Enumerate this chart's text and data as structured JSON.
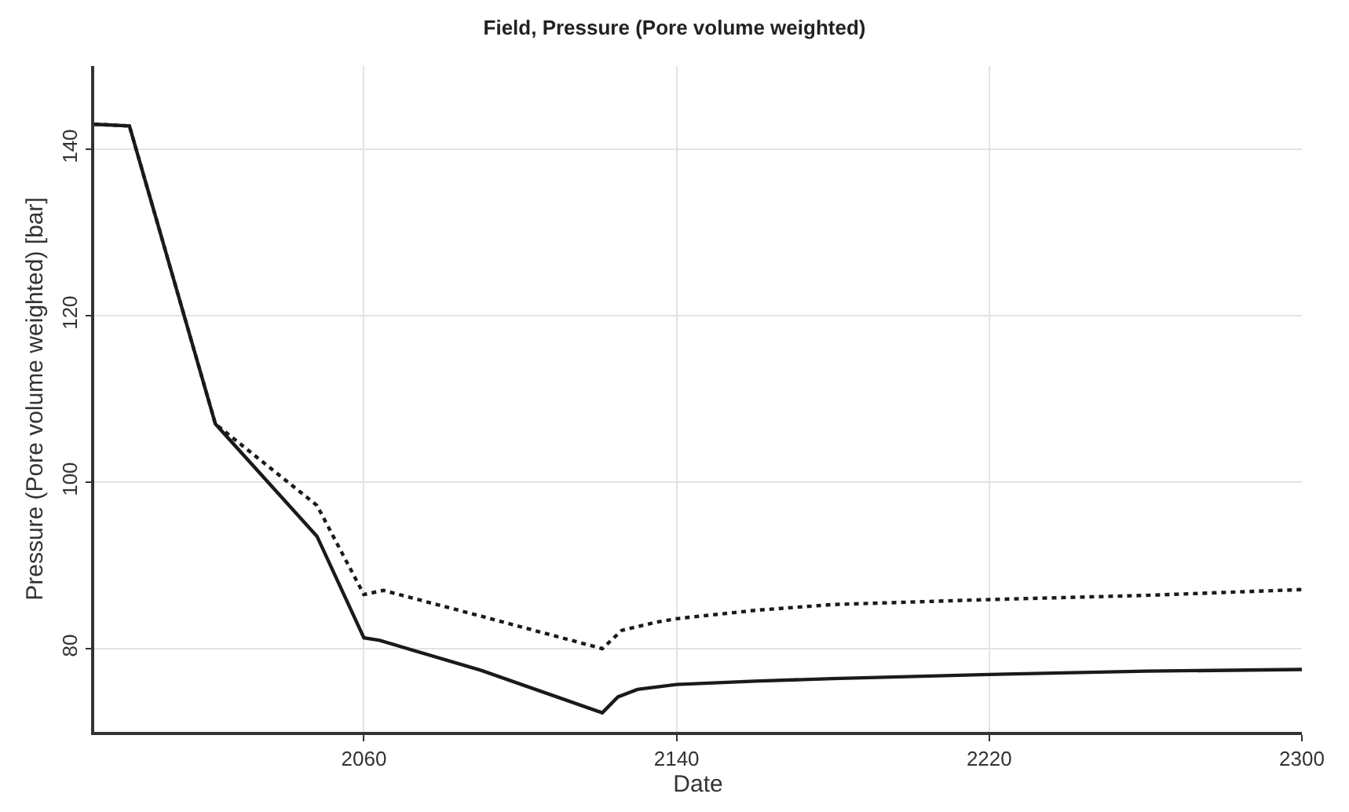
{
  "chart_data": {
    "type": "line",
    "title": "Field, Pressure (Pore volume weighted)",
    "xlabel": "Date",
    "ylabel": "Pressure (Pore volume weighted) [bar]",
    "xlim": [
      1991,
      2300
    ],
    "xticks": [
      2060,
      2140,
      2220,
      2300
    ],
    "ylim": [
      70,
      150
    ],
    "yticks": [
      80,
      100,
      120,
      140
    ],
    "grid": true,
    "marker": "none",
    "series": [
      {
        "color": "#1a1a1a",
        "line_style": "solid",
        "x": [
          1991,
          2000,
          2022,
          2048,
          2060,
          2064,
          2090,
          2121,
          2125,
          2130,
          2140,
          2160,
          2180,
          2220,
          2260,
          2300
        ],
        "values": [
          143,
          142.8,
          107,
          93.5,
          81.3,
          81,
          77.4,
          72.3,
          74.2,
          75.1,
          75.7,
          76.1,
          76.4,
          76.9,
          77.3,
          77.5
        ]
      },
      {
        "color": "#1a1a1a",
        "line_style": "dotted",
        "x": [
          1991,
          2000,
          2022,
          2048,
          2060,
          2065,
          2090,
          2121,
          2126,
          2135,
          2140,
          2160,
          2180,
          2220,
          2260,
          2300
        ],
        "values": [
          143,
          142.8,
          107,
          97.2,
          86.5,
          87,
          83.9,
          80,
          82.2,
          83.2,
          83.6,
          84.6,
          85.3,
          85.9,
          86.4,
          87.1
        ]
      }
    ]
  }
}
